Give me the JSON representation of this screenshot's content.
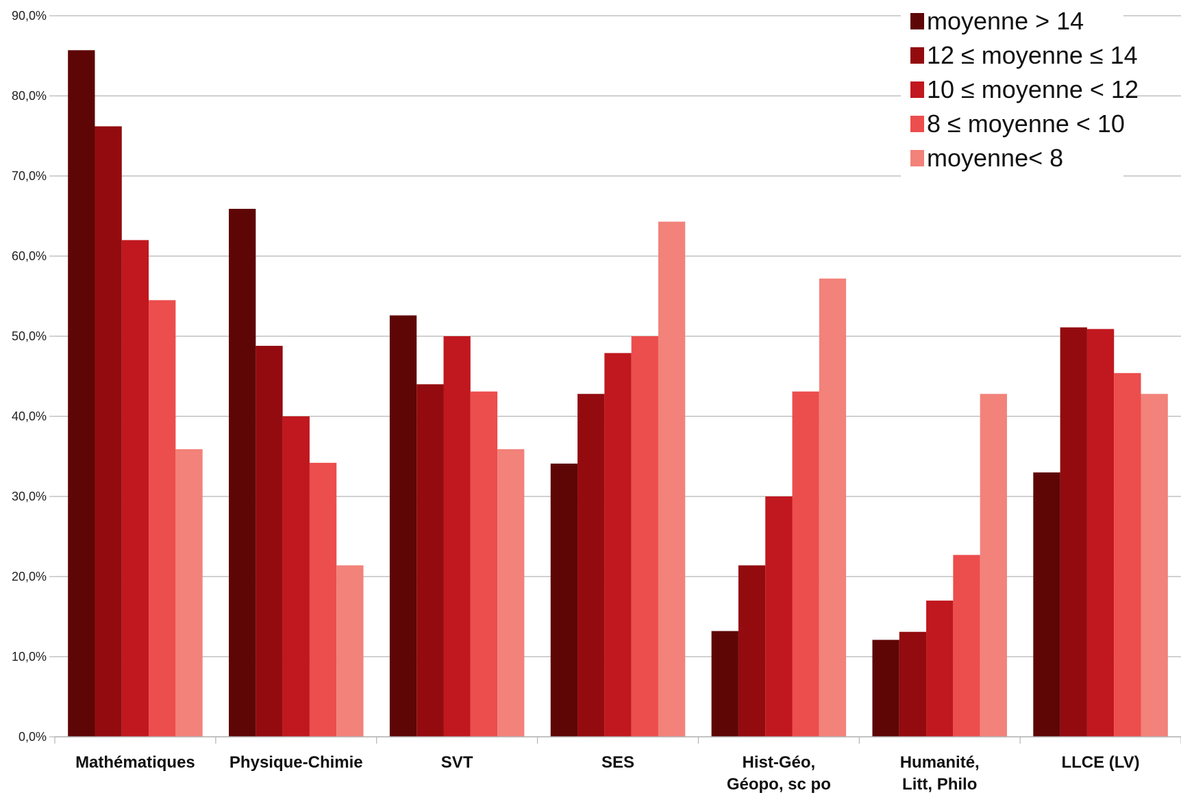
{
  "chart_data": {
    "type": "bar",
    "categories": [
      [
        "Mathématiques"
      ],
      [
        "Physique-Chimie"
      ],
      [
        "SVT"
      ],
      [
        "SES"
      ],
      [
        "Hist-Géo,",
        "Géopo, sc po"
      ],
      [
        "Humanité,",
        "Litt, Philo"
      ],
      [
        "LLCE (LV)"
      ]
    ],
    "series": [
      {
        "name": "moyenne > 14",
        "color": "#5e0606",
        "values": [
          85.7,
          65.9,
          52.6,
          34.1,
          13.2,
          12.1,
          33.0
        ]
      },
      {
        "name": "12 ≤ moyenne ≤ 14",
        "color": "#930b0f",
        "values": [
          76.2,
          48.8,
          44.0,
          42.8,
          21.4,
          13.1,
          51.1
        ]
      },
      {
        "name": "10 ≤ moyenne < 12",
        "color": "#c0181e",
        "values": [
          62.0,
          40.0,
          50.0,
          47.9,
          30.0,
          17.0,
          50.9
        ]
      },
      {
        "name": "8 ≤ moyenne < 10",
        "color": "#ec4d4d",
        "values": [
          54.5,
          34.2,
          43.1,
          50.0,
          43.1,
          22.7,
          45.4
        ]
      },
      {
        "name": "moyenne< 8",
        "color": "#f2827a",
        "values": [
          35.9,
          21.4,
          35.9,
          64.3,
          57.2,
          42.8,
          42.8
        ]
      }
    ],
    "yticks": [
      "0,0%",
      "10,0%",
      "20,0%",
      "30,0%",
      "40,0%",
      "50,0%",
      "60,0%",
      "70,0%",
      "80,0%",
      "90,0%"
    ],
    "ylim": [
      0,
      90
    ],
    "grid": true,
    "legend_position": "top-right",
    "title": "",
    "xlabel": "",
    "ylabel": ""
  }
}
